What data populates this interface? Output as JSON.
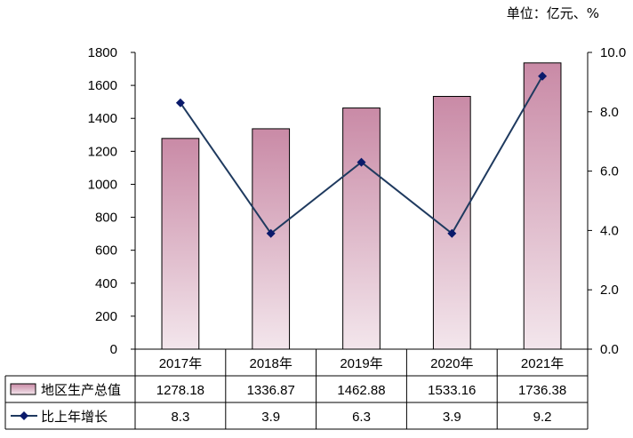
{
  "unit": "单位：亿元、%",
  "chart_data": {
    "type": "bar",
    "categories": [
      "2017年",
      "2018年",
      "2019年",
      "2020年",
      "2021年"
    ],
    "series": [
      {
        "name": "地区生产总值",
        "type": "bar",
        "axis": "left",
        "values": [
          1278.18,
          1336.87,
          1462.88,
          1533.16,
          1736.38
        ],
        "labels": [
          "1278.18",
          "1336.87",
          "1462.88",
          "1533.16",
          "1736.38"
        ]
      },
      {
        "name": "比上年增长",
        "type": "line",
        "axis": "right",
        "values": [
          8.3,
          3.9,
          6.3,
          3.9,
          9.2
        ],
        "labels": [
          "8.3",
          "3.9",
          "6.3",
          "3.9",
          "9.2"
        ]
      }
    ],
    "y_left": {
      "range": [
        0,
        1800
      ],
      "ticks": [
        "0",
        "200",
        "400",
        "600",
        "800",
        "1000",
        "1200",
        "1400",
        "1600",
        "1800"
      ]
    },
    "y_right": {
      "range": [
        0,
        10
      ],
      "ticks": [
        "0.0",
        "2.0",
        "4.0",
        "6.0",
        "8.0",
        "10.0"
      ]
    },
    "colors": {
      "bar_top": "#c98aa6",
      "bar_bottom": "#f3e6ec",
      "line": "#1f3a5f",
      "marker": "#0a1a6b"
    },
    "data_table": true,
    "grid": false
  }
}
